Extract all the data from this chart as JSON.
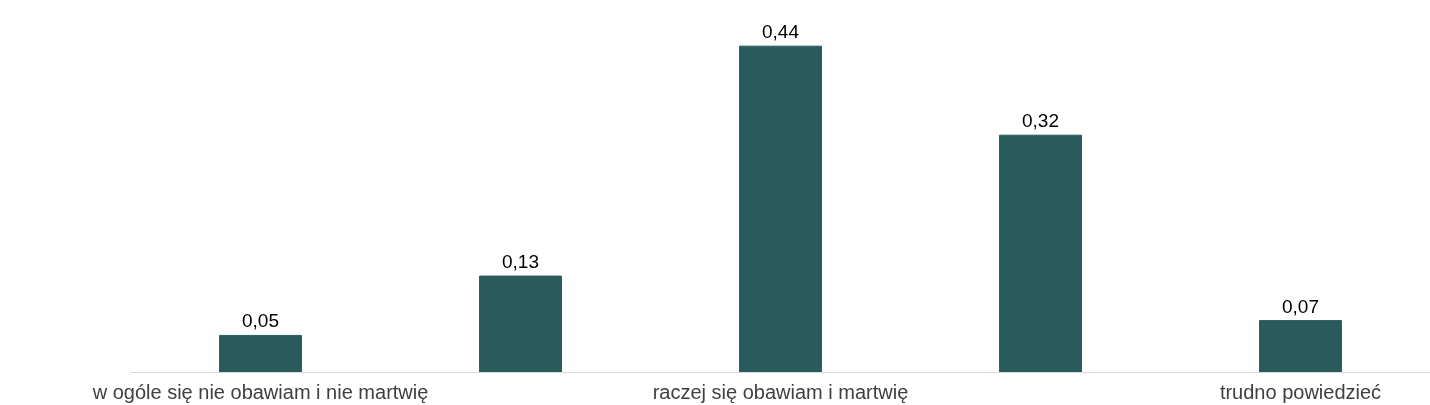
{
  "chart_data": {
    "type": "bar",
    "categories": [
      "w ogóle się nie obawiam i nie martwię",
      null,
      "raczej się obawiam i martwię",
      null,
      "trudno powiedzieć"
    ],
    "values": [
      0.05,
      0.13,
      0.44,
      0.32,
      0.07
    ],
    "value_labels": [
      "0,05",
      "0,13",
      "0,44",
      "0,32",
      "0,07"
    ],
    "color": "#2a5b5c",
    "grid": false
  }
}
